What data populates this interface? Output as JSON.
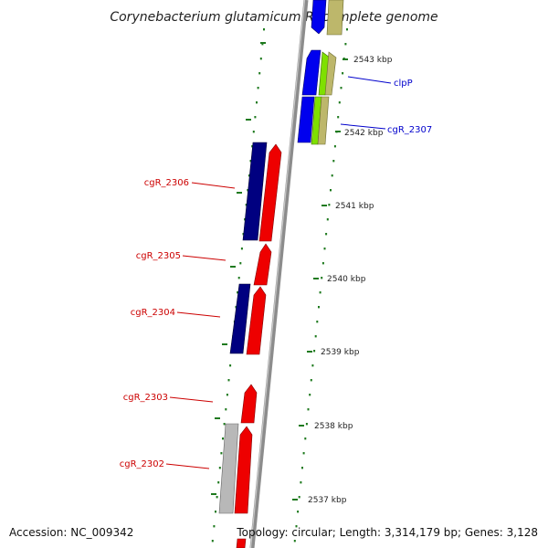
{
  "title": "Corynebacterium glutamicum R, complete genome",
  "footer": {
    "accession": "Accession: NC_009342",
    "topology": "Topology: circular; Length: 3,314,179 bp; Genes: 3,128"
  },
  "colors": {
    "backbone": "#8c8c8c",
    "tick": "#1f7a1f",
    "red_gene": "#ee0000",
    "navy_gene": "#000080",
    "blue_gene": "#0000ee",
    "green_gene": "#7fe000",
    "tan_gene": "#bdb76b",
    "gray_gene": "#b8b8b8",
    "left_label": "#cc0000",
    "right_label": "#0000cc"
  },
  "scale_labels": [
    "2543 kbp",
    "2542 kbp",
    "2541 kbp",
    "2540 kbp",
    "2539 kbp",
    "2538 kbp",
    "2537 kbp"
  ],
  "gene_labels": {
    "right": [
      "clpP",
      "cgR_2307"
    ],
    "left": [
      "cgR_2306",
      "cgR_2305",
      "cgR_2304",
      "cgR_2303",
      "cgR_2302"
    ]
  }
}
